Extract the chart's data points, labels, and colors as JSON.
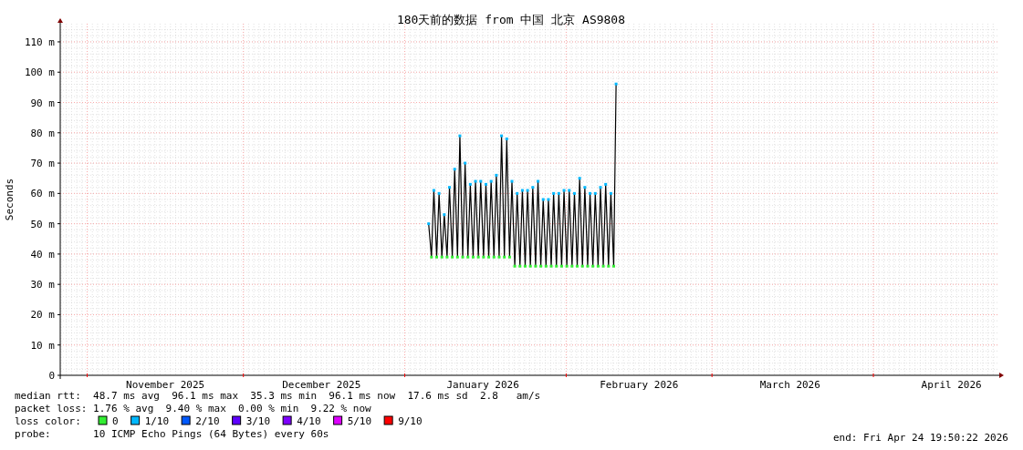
{
  "chart_data": {
    "type": "line",
    "title": "180天前的数据 from 中国 北京 AS9808",
    "ylabel": "Seconds",
    "xlim": [
      "2025-10-26T19:50",
      "2026-04-24T19:50"
    ],
    "ylim": [
      0,
      116
    ],
    "yticks": [
      0,
      {
        "value": 10,
        "label": "10 m"
      },
      {
        "value": 20,
        "label": "20 m"
      },
      {
        "value": 30,
        "label": "30 m"
      },
      {
        "value": 40,
        "label": "40 m"
      },
      {
        "value": 50,
        "label": "50 m"
      },
      {
        "value": 60,
        "label": "60 m"
      },
      {
        "value": 70,
        "label": "70 m"
      },
      {
        "value": 80,
        "label": "80 m"
      },
      {
        "value": 90,
        "label": "90 m"
      },
      {
        "value": 100,
        "label": "100 m"
      },
      {
        "value": 110,
        "label": "110 m"
      }
    ],
    "xticks": [
      {
        "value": "2025-11-01",
        "label": null
      },
      {
        "value": "2025-11-16",
        "label": "November 2025"
      },
      {
        "value": "2025-12-01",
        "label": null
      },
      {
        "value": "2025-12-16",
        "label": "December 2025"
      },
      {
        "value": "2026-01-01",
        "label": null
      },
      {
        "value": "2026-01-16",
        "label": "January 2026"
      },
      {
        "value": "2026-02-01",
        "label": null
      },
      {
        "value": "2026-02-15",
        "label": "February 2026"
      },
      {
        "value": "2026-03-01",
        "label": null
      },
      {
        "value": "2026-03-16",
        "label": "March 2026"
      },
      {
        "value": "2026-04-01",
        "label": null
      },
      {
        "value": "2026-04-16",
        "label": "April 2026"
      }
    ],
    "grid": true,
    "legend": "bottom",
    "legend_title": "loss color:",
    "line_style": "solid",
    "series": [
      {
        "color": "#000000",
        "marker": "none",
        "x": [
          "2026-01-05T14:00",
          "2026-01-06T03:00",
          "2026-01-06T14:00",
          "2026-01-07T03:00",
          "2026-01-07T14:00",
          "2026-01-08T03:00",
          "2026-01-08T14:00",
          "2026-01-09T03:00",
          "2026-01-09T14:00",
          "2026-01-10T03:00",
          "2026-01-10T14:00",
          "2026-01-11T03:00",
          "2026-01-11T14:00",
          "2026-01-12T03:00",
          "2026-01-12T14:00",
          "2026-01-13T03:00",
          "2026-01-13T14:00",
          "2026-01-14T03:00",
          "2026-01-14T14:00",
          "2026-01-15T03:00",
          "2026-01-15T14:00",
          "2026-01-16T03:00",
          "2026-01-16T14:00",
          "2026-01-17T03:00",
          "2026-01-17T14:00",
          "2026-01-18T03:00",
          "2026-01-18T14:00",
          "2026-01-19T03:00",
          "2026-01-19T14:00",
          "2026-01-20T03:00",
          "2026-01-20T14:00",
          "2026-01-21T03:00",
          "2026-01-21T14:00",
          "2026-01-22T03:00",
          "2026-01-22T14:00",
          "2026-01-23T03:00",
          "2026-01-23T14:00",
          "2026-01-24T03:00",
          "2026-01-24T14:00",
          "2026-01-25T03:00",
          "2026-01-25T14:00",
          "2026-01-26T03:00",
          "2026-01-26T14:00",
          "2026-01-27T03:00",
          "2026-01-27T14:00",
          "2026-01-28T03:00",
          "2026-01-28T14:00",
          "2026-01-29T03:00",
          "2026-01-29T14:00",
          "2026-01-30T03:00",
          "2026-01-30T14:00",
          "2026-01-31T03:00",
          "2026-01-31T14:00",
          "2026-02-01T03:00",
          "2026-02-01T14:00",
          "2026-02-02T03:00",
          "2026-02-02T14:00",
          "2026-02-03T03:00",
          "2026-02-03T14:00",
          "2026-02-04T03:00",
          "2026-02-04T14:00",
          "2026-02-05T03:00",
          "2026-02-05T14:00",
          "2026-02-06T03:00",
          "2026-02-06T14:00",
          "2026-02-07T03:00",
          "2026-02-07T14:00",
          "2026-02-08T03:00",
          "2026-02-08T14:00",
          "2026-02-09T03:00",
          "2026-02-09T14:00",
          "2026-02-10T03:00",
          "2026-02-10T14:00"
        ],
        "values": [
          50,
          39,
          61,
          39,
          60,
          39,
          53,
          39,
          62,
          39,
          68,
          39,
          79,
          39,
          70,
          39,
          63,
          39,
          64,
          39,
          64,
          39,
          63,
          39,
          64,
          39,
          66,
          39,
          79,
          39,
          78,
          39,
          64,
          36,
          60,
          36,
          61,
          36,
          61,
          36,
          62,
          36,
          64,
          36,
          58,
          36,
          58,
          36,
          60,
          36,
          60,
          36,
          61,
          36,
          61,
          36,
          60,
          36,
          65,
          36,
          62,
          36,
          60,
          36,
          60,
          36,
          62,
          36,
          63,
          36,
          60,
          36,
          96.1
        ]
      },
      {
        "type": "scatter",
        "name": "0",
        "color": "#33ee33",
        "marker": "square",
        "x": [
          "2026-01-06T03:00",
          "2026-01-07T03:00",
          "2026-01-08T03:00",
          "2026-01-09T03:00",
          "2026-01-10T03:00",
          "2026-01-11T03:00",
          "2026-01-12T03:00",
          "2026-01-13T03:00",
          "2026-01-14T03:00",
          "2026-01-15T03:00",
          "2026-01-16T03:00",
          "2026-01-17T03:00",
          "2026-01-18T03:00",
          "2026-01-19T03:00",
          "2026-01-20T03:00",
          "2026-01-21T03:00",
          "2026-01-22T03:00",
          "2026-01-23T03:00",
          "2026-01-24T03:00",
          "2026-01-25T03:00",
          "2026-01-26T03:00",
          "2026-01-27T03:00",
          "2026-01-28T03:00",
          "2026-01-29T03:00",
          "2026-01-30T03:00",
          "2026-01-31T03:00",
          "2026-02-01T03:00",
          "2026-02-02T03:00",
          "2026-02-03T03:00",
          "2026-02-04T03:00",
          "2026-02-05T03:00",
          "2026-02-06T03:00",
          "2026-02-07T03:00",
          "2026-02-08T03:00",
          "2026-02-09T03:00",
          "2026-02-10T03:00"
        ],
        "values": [
          39,
          39,
          39,
          39,
          39,
          39,
          39,
          39,
          39,
          39,
          39,
          39,
          39,
          39,
          39,
          39,
          36,
          36,
          36,
          36,
          36,
          36,
          36,
          36,
          36,
          36,
          36,
          36,
          36,
          36,
          36,
          36,
          36,
          36,
          36,
          36
        ]
      },
      {
        "type": "scatter",
        "name": "1/10",
        "color": "#00b8ff",
        "marker": "square",
        "x": [
          "2026-01-05T14:00",
          "2026-01-06T14:00",
          "2026-01-07T14:00",
          "2026-01-08T14:00",
          "2026-01-09T14:00",
          "2026-01-10T14:00",
          "2026-01-11T14:00",
          "2026-01-12T14:00",
          "2026-01-13T14:00",
          "2026-01-14T14:00",
          "2026-01-15T14:00",
          "2026-01-16T14:00",
          "2026-01-17T14:00",
          "2026-01-18T14:00",
          "2026-01-19T14:00",
          "2026-01-20T14:00",
          "2026-01-21T14:00",
          "2026-01-22T14:00",
          "2026-01-23T14:00",
          "2026-01-24T14:00",
          "2026-01-25T14:00",
          "2026-01-26T14:00",
          "2026-01-27T14:00",
          "2026-01-28T14:00",
          "2026-01-29T14:00",
          "2026-01-30T14:00",
          "2026-01-31T14:00",
          "2026-02-01T14:00",
          "2026-02-02T14:00",
          "2026-02-03T14:00",
          "2026-02-04T14:00",
          "2026-02-05T14:00",
          "2026-02-06T14:00",
          "2026-02-07T14:00",
          "2026-02-08T14:00",
          "2026-02-09T14:00",
          "2026-02-10T14:00"
        ],
        "values": [
          50,
          61,
          60,
          53,
          62,
          68,
          79,
          70,
          63,
          64,
          64,
          63,
          64,
          66,
          79,
          78,
          64,
          60,
          61,
          61,
          62,
          64,
          58,
          58,
          60,
          60,
          61,
          61,
          60,
          65,
          62,
          60,
          60,
          62,
          63,
          60,
          96.1
        ]
      },
      {
        "type": "scatter",
        "name": "2/10",
        "color": "#0059ff"
      },
      {
        "type": "scatter",
        "name": "3/10",
        "color": "#5e00ff"
      },
      {
        "type": "scatter",
        "name": "4/10",
        "color": "#7e00ff"
      },
      {
        "type": "scatter",
        "name": "5/10",
        "color": "#dd00ff"
      },
      {
        "type": "scatter",
        "name": "9/10",
        "color": "#ff0000"
      }
    ],
    "annotations": [
      "median rtt:  48.7 ms avg  96.1 ms max  35.3 ms min  96.1 ms now  17.6 ms sd  2.8   am/s",
      "packet loss: 1.76 % avg  9.40 % max  0.00 % min  9.22 % now",
      "probe:       10 ICMP Echo Pings (64 Bytes) every 60s",
      "end: Fri Apr 24 19:50:22 2026"
    ]
  }
}
